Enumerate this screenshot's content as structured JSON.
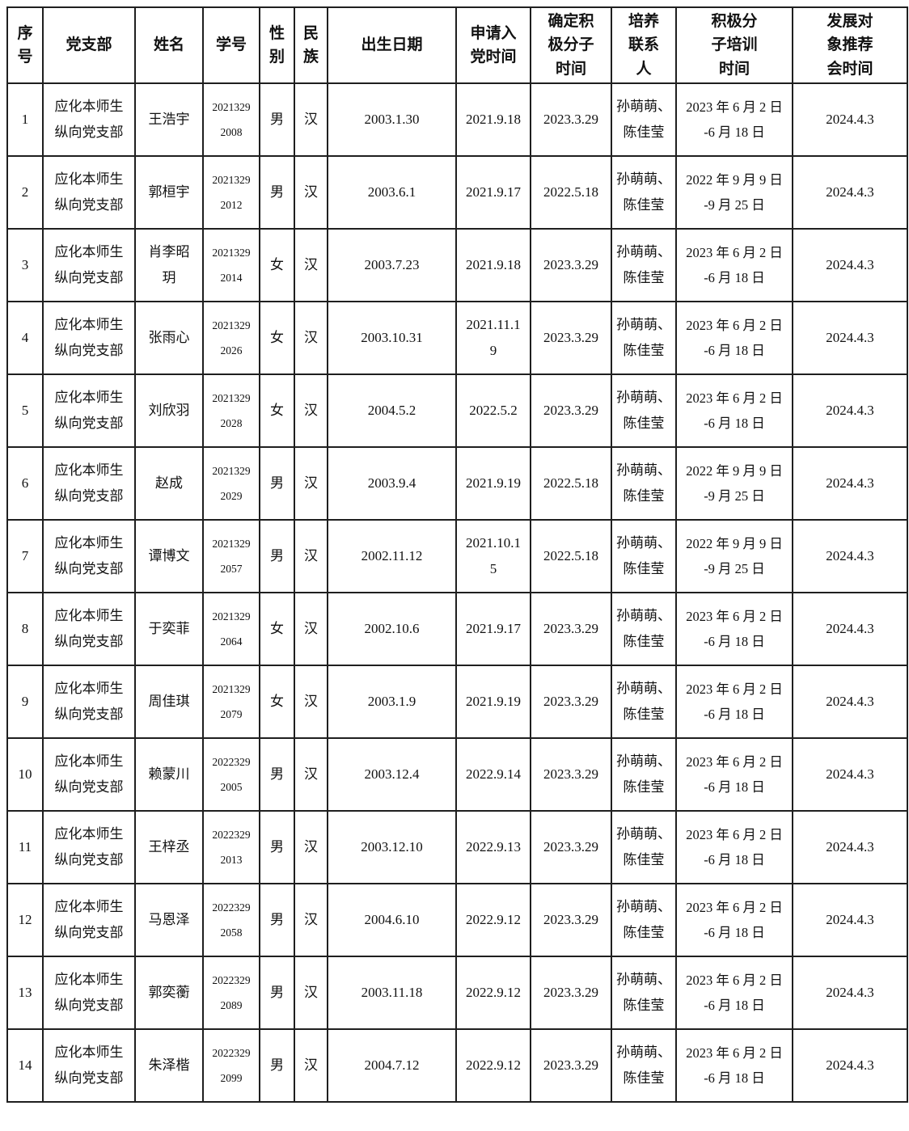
{
  "colors": {
    "page_background": "#ffffff",
    "border": "#1f1f1f",
    "text": "#111111"
  },
  "table": {
    "columns": [
      {
        "key": "seq",
        "label": [
          "序",
          "号"
        ]
      },
      {
        "key": "branch",
        "label": "党支部"
      },
      {
        "key": "name",
        "label": "姓名"
      },
      {
        "key": "student_id",
        "label": "学号"
      },
      {
        "key": "gender",
        "label": [
          "性",
          "别"
        ]
      },
      {
        "key": "ethnicity",
        "label": [
          "民",
          "族"
        ]
      },
      {
        "key": "birth_date",
        "label": "出生日期"
      },
      {
        "key": "apply_date",
        "label": [
          "申请入",
          "党时间"
        ]
      },
      {
        "key": "activist_date",
        "label": [
          "确定积",
          "极分子",
          "时间"
        ]
      },
      {
        "key": "contacts",
        "label": [
          "培养",
          "联系",
          "人"
        ]
      },
      {
        "key": "training_period",
        "label": [
          "积极分",
          "子培训",
          "时间"
        ]
      },
      {
        "key": "recommend_date",
        "label": [
          "发展对",
          "象推荐",
          "会时间"
        ]
      }
    ],
    "rows": [
      {
        "seq": "1",
        "branch": [
          "应化本师生",
          "纵向党支部"
        ],
        "name": "王浩宇",
        "student_id": [
          "2021329",
          "2008"
        ],
        "gender": "男",
        "ethnicity": "汉",
        "birth_date": "2003.1.30",
        "apply_date": "2021.9.18",
        "activist_date": "2023.3.29",
        "contacts": [
          "孙萌萌、",
          "陈佳莹"
        ],
        "training_period": [
          "2023 年 6 月 2 日",
          "-6 月 18 日"
        ],
        "recommend_date": "2024.4.3"
      },
      {
        "seq": "2",
        "branch": [
          "应化本师生",
          "纵向党支部"
        ],
        "name": "郭桓宇",
        "student_id": [
          "2021329",
          "2012"
        ],
        "gender": "男",
        "ethnicity": "汉",
        "birth_date": "2003.6.1",
        "apply_date": "2021.9.17",
        "activist_date": "2022.5.18",
        "contacts": [
          "孙萌萌、",
          "陈佳莹"
        ],
        "training_period": [
          "2022 年 9 月 9 日",
          "-9 月 25 日"
        ],
        "recommend_date": "2024.4.3"
      },
      {
        "seq": "3",
        "branch": [
          "应化本师生",
          "纵向党支部"
        ],
        "name": [
          "肖李昭",
          "玥"
        ],
        "student_id": [
          "2021329",
          "2014"
        ],
        "gender": "女",
        "ethnicity": "汉",
        "birth_date": "2003.7.23",
        "apply_date": "2021.9.18",
        "activist_date": "2023.3.29",
        "contacts": [
          "孙萌萌、",
          "陈佳莹"
        ],
        "training_period": [
          "2023 年 6 月 2 日",
          "-6 月 18 日"
        ],
        "recommend_date": "2024.4.3"
      },
      {
        "seq": "4",
        "branch": [
          "应化本师生",
          "纵向党支部"
        ],
        "name": "张雨心",
        "student_id": [
          "2021329",
          "2026"
        ],
        "gender": "女",
        "ethnicity": "汉",
        "birth_date": "2003.10.31",
        "apply_date": [
          "2021.11.1",
          "9"
        ],
        "activist_date": "2023.3.29",
        "contacts": [
          "孙萌萌、",
          "陈佳莹"
        ],
        "training_period": [
          "2023 年 6 月 2 日",
          "-6 月 18 日"
        ],
        "recommend_date": "2024.4.3"
      },
      {
        "seq": "5",
        "branch": [
          "应化本师生",
          "纵向党支部"
        ],
        "name": "刘欣羽",
        "student_id": [
          "2021329",
          "2028"
        ],
        "gender": "女",
        "ethnicity": "汉",
        "birth_date": "2004.5.2",
        "apply_date": "2022.5.2",
        "activist_date": "2023.3.29",
        "contacts": [
          "孙萌萌、",
          "陈佳莹"
        ],
        "training_period": [
          "2023 年 6 月 2 日",
          "-6 月 18 日"
        ],
        "recommend_date": "2024.4.3"
      },
      {
        "seq": "6",
        "branch": [
          "应化本师生",
          "纵向党支部"
        ],
        "name": "赵成",
        "student_id": [
          "2021329",
          "2029"
        ],
        "gender": "男",
        "ethnicity": "汉",
        "birth_date": "2003.9.4",
        "apply_date": "2021.9.19",
        "activist_date": "2022.5.18",
        "contacts": [
          "孙萌萌、",
          "陈佳莹"
        ],
        "training_period": [
          "2022 年 9 月 9 日",
          "-9 月 25 日"
        ],
        "recommend_date": "2024.4.3"
      },
      {
        "seq": "7",
        "branch": [
          "应化本师生",
          "纵向党支部"
        ],
        "name": "谭博文",
        "student_id": [
          "2021329",
          "2057"
        ],
        "gender": "男",
        "ethnicity": "汉",
        "birth_date": "2002.11.12",
        "apply_date": [
          "2021.10.1",
          "5"
        ],
        "activist_date": "2022.5.18",
        "contacts": [
          "孙萌萌、",
          "陈佳莹"
        ],
        "training_period": [
          "2022 年 9 月 9 日",
          "-9 月 25 日"
        ],
        "recommend_date": "2024.4.3"
      },
      {
        "seq": "8",
        "branch": [
          "应化本师生",
          "纵向党支部"
        ],
        "name": "于奕菲",
        "student_id": [
          "2021329",
          "2064"
        ],
        "gender": "女",
        "ethnicity": "汉",
        "birth_date": "2002.10.6",
        "apply_date": "2021.9.17",
        "activist_date": "2023.3.29",
        "contacts": [
          "孙萌萌、",
          "陈佳莹"
        ],
        "training_period": [
          "2023 年 6 月 2 日",
          "-6 月 18 日"
        ],
        "recommend_date": "2024.4.3"
      },
      {
        "seq": "9",
        "branch": [
          "应化本师生",
          "纵向党支部"
        ],
        "name": "周佳琪",
        "student_id": [
          "2021329",
          "2079"
        ],
        "gender": "女",
        "ethnicity": "汉",
        "birth_date": "2003.1.9",
        "apply_date": "2021.9.19",
        "activist_date": "2023.3.29",
        "contacts": [
          "孙萌萌、",
          "陈佳莹"
        ],
        "training_period": [
          "2023 年 6 月 2 日",
          "-6 月 18 日"
        ],
        "recommend_date": "2024.4.3"
      },
      {
        "seq": "10",
        "branch": [
          "应化本师生",
          "纵向党支部"
        ],
        "name": "赖蒙川",
        "student_id": [
          "2022329",
          "2005"
        ],
        "gender": "男",
        "ethnicity": "汉",
        "birth_date": "2003.12.4",
        "apply_date": "2022.9.14",
        "activist_date": "2023.3.29",
        "contacts": [
          "孙萌萌、",
          "陈佳莹"
        ],
        "training_period": [
          "2023 年 6 月 2 日",
          "-6 月 18 日"
        ],
        "recommend_date": "2024.4.3"
      },
      {
        "seq": "11",
        "branch": [
          "应化本师生",
          "纵向党支部"
        ],
        "name": "王梓丞",
        "student_id": [
          "2022329",
          "2013"
        ],
        "gender": "男",
        "ethnicity": "汉",
        "birth_date": "2003.12.10",
        "apply_date": "2022.9.13",
        "activist_date": "2023.3.29",
        "contacts": [
          "孙萌萌、",
          "陈佳莹"
        ],
        "training_period": [
          "2023 年 6 月 2 日",
          "-6 月 18 日"
        ],
        "recommend_date": "2024.4.3"
      },
      {
        "seq": "12",
        "branch": [
          "应化本师生",
          "纵向党支部"
        ],
        "name": "马恩泽",
        "student_id": [
          "2022329",
          "2058"
        ],
        "gender": "男",
        "ethnicity": "汉",
        "birth_date": "2004.6.10",
        "apply_date": "2022.9.12",
        "activist_date": "2023.3.29",
        "contacts": [
          "孙萌萌、",
          "陈佳莹"
        ],
        "training_period": [
          "2023 年 6 月 2 日",
          "-6 月 18 日"
        ],
        "recommend_date": "2024.4.3"
      },
      {
        "seq": "13",
        "branch": [
          "应化本师生",
          "纵向党支部"
        ],
        "name": "郭奕蘅",
        "student_id": [
          "2022329",
          "2089"
        ],
        "gender": "男",
        "ethnicity": "汉",
        "birth_date": "2003.11.18",
        "apply_date": "2022.9.12",
        "activist_date": "2023.3.29",
        "contacts": [
          "孙萌萌、",
          "陈佳莹"
        ],
        "training_period": [
          "2023 年 6 月 2 日",
          "-6 月 18 日"
        ],
        "recommend_date": "2024.4.3"
      },
      {
        "seq": "14",
        "branch": [
          "应化本师生",
          "纵向党支部"
        ],
        "name": "朱泽楷",
        "student_id": [
          "2022329",
          "2099"
        ],
        "gender": "男",
        "ethnicity": "汉",
        "birth_date": "2004.7.12",
        "apply_date": "2022.9.12",
        "activist_date": "2023.3.29",
        "contacts": [
          "孙萌萌、",
          "陈佳莹"
        ],
        "training_period": [
          "2023 年 6 月 2 日",
          "-6 月 18 日"
        ],
        "recommend_date": "2024.4.3"
      }
    ]
  }
}
